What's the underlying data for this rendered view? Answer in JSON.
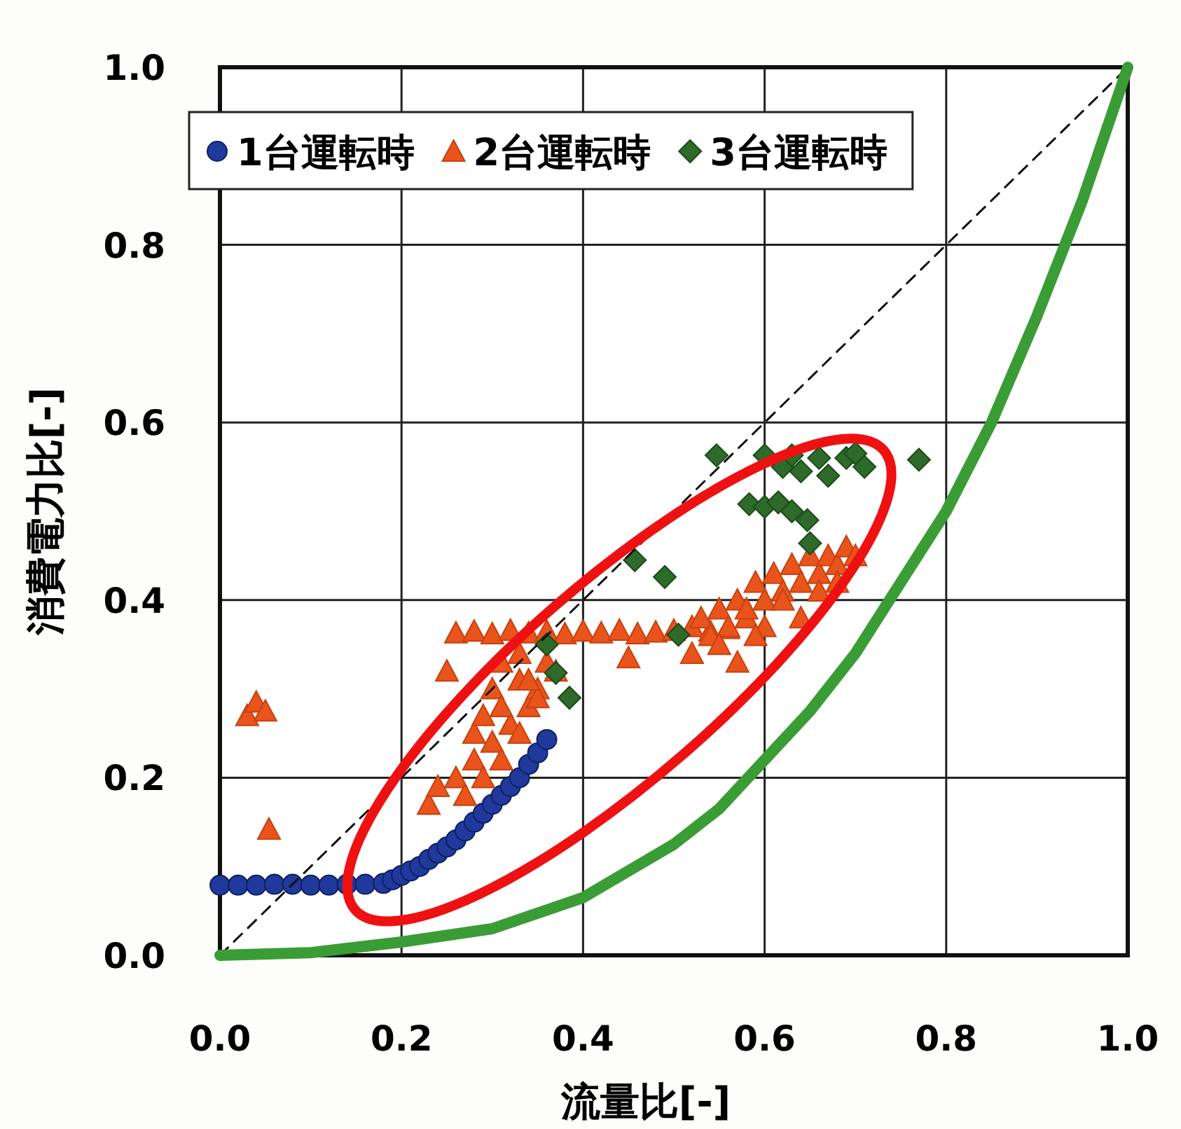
{
  "chart_data": {
    "type": "scatter",
    "xlabel": "流量比[-]",
    "ylabel": "消費電力比[-]",
    "xlim": [
      0,
      1
    ],
    "ylim": [
      0,
      1
    ],
    "xticks": [
      {
        "value": 0,
        "label": "0.0"
      },
      {
        "value": 0.2,
        "label": "0.2"
      },
      {
        "value": 0.4,
        "label": "0.4"
      },
      {
        "value": 0.6,
        "label": "0.6"
      },
      {
        "value": 0.8,
        "label": "0.8"
      },
      {
        "value": 1,
        "label": "1.0"
      }
    ],
    "yticks": [
      {
        "value": 0,
        "label": "0.0"
      },
      {
        "value": 0.2,
        "label": "0.2"
      },
      {
        "value": 0.4,
        "label": "0.4"
      },
      {
        "value": 0.6,
        "label": "0.6"
      },
      {
        "value": 0.8,
        "label": "0.8"
      },
      {
        "value": 1,
        "label": "1.0"
      }
    ],
    "grid": true,
    "legend": "top",
    "series": [
      {
        "name": "1台運転時",
        "marker": "circle",
        "color": "#1f3a9a",
        "x": [
          0.0,
          0.02,
          0.04,
          0.06,
          0.08,
          0.1,
          0.12,
          0.14,
          0.16,
          0.18,
          0.19,
          0.2,
          0.21,
          0.22,
          0.23,
          0.24,
          0.25,
          0.26,
          0.27,
          0.28,
          0.29,
          0.3,
          0.31,
          0.32,
          0.33,
          0.34,
          0.35,
          0.36
        ],
        "values": [
          0.079,
          0.079,
          0.079,
          0.08,
          0.08,
          0.079,
          0.079,
          0.08,
          0.08,
          0.081,
          0.085,
          0.09,
          0.095,
          0.1,
          0.108,
          0.115,
          0.122,
          0.13,
          0.14,
          0.15,
          0.16,
          0.17,
          0.18,
          0.19,
          0.2,
          0.215,
          0.228,
          0.243
        ]
      },
      {
        "name": "2台運転時",
        "marker": "triangle",
        "color": "#e8541c",
        "x": [
          0.03,
          0.04,
          0.05,
          0.054,
          0.25,
          0.23,
          0.24,
          0.26,
          0.27,
          0.28,
          0.29,
          0.3,
          0.31,
          0.32,
          0.33,
          0.34,
          0.35,
          0.36,
          0.26,
          0.28,
          0.3,
          0.32,
          0.34,
          0.36,
          0.38,
          0.4,
          0.42,
          0.44,
          0.46,
          0.48,
          0.5,
          0.52,
          0.54,
          0.56,
          0.3,
          0.31,
          0.33,
          0.35,
          0.37,
          0.28,
          0.29,
          0.31,
          0.33,
          0.34,
          0.45,
          0.52,
          0.53,
          0.54,
          0.55,
          0.56,
          0.57,
          0.58,
          0.59,
          0.6,
          0.61,
          0.62,
          0.63,
          0.64,
          0.65,
          0.66,
          0.67,
          0.68,
          0.69,
          0.7,
          0.58,
          0.6,
          0.62,
          0.64,
          0.66,
          0.68,
          0.55,
          0.57,
          0.59
        ],
        "values": [
          0.27,
          0.285,
          0.275,
          0.142,
          0.32,
          0.17,
          0.19,
          0.2,
          0.18,
          0.22,
          0.2,
          0.24,
          0.22,
          0.26,
          0.25,
          0.28,
          0.3,
          0.33,
          0.363,
          0.365,
          0.362,
          0.366,
          0.363,
          0.365,
          0.362,
          0.365,
          0.363,
          0.366,
          0.362,
          0.364,
          0.366,
          0.37,
          0.365,
          0.368,
          0.3,
          0.28,
          0.31,
          0.29,
          0.32,
          0.25,
          0.27,
          0.33,
          0.34,
          0.31,
          0.335,
          0.34,
          0.38,
          0.36,
          0.39,
          0.37,
          0.4,
          0.38,
          0.42,
          0.4,
          0.43,
          0.41,
          0.44,
          0.42,
          0.45,
          0.43,
          0.45,
          0.44,
          0.46,
          0.45,
          0.39,
          0.37,
          0.4,
          0.38,
          0.41,
          0.42,
          0.35,
          0.33,
          0.36
        ]
      },
      {
        "name": "3台運転時",
        "marker": "diamond",
        "color": "#2e6b2a",
        "x": [
          0.36,
          0.37,
          0.385,
          0.457,
          0.49,
          0.505,
          0.547,
          0.6,
          0.62,
          0.63,
          0.64,
          0.66,
          0.67,
          0.69,
          0.7,
          0.71,
          0.77,
          0.583,
          0.6,
          0.615,
          0.63,
          0.647,
          0.65
        ],
        "values": [
          0.35,
          0.318,
          0.29,
          0.445,
          0.426,
          0.361,
          0.563,
          0.563,
          0.55,
          0.563,
          0.545,
          0.56,
          0.54,
          0.56,
          0.565,
          0.55,
          0.558,
          0.508,
          0.505,
          0.51,
          0.5,
          0.49,
          0.464
        ]
      },
      {
        "type": "line",
        "line_style": "dashed",
        "color": "#111111",
        "x": [
          0,
          1
        ],
        "values": [
          0,
          1
        ]
      },
      {
        "type": "line",
        "line_style": "solid",
        "color": "#3a9c35",
        "x": [
          0,
          0.1,
          0.2,
          0.3,
          0.4,
          0.5,
          0.55,
          0.6,
          0.65,
          0.7,
          0.75,
          0.8,
          0.85,
          0.9,
          0.95,
          1.0
        ],
        "values": [
          0,
          0.003,
          0.015,
          0.03,
          0.065,
          0.125,
          0.165,
          0.22,
          0.275,
          0.34,
          0.42,
          0.5,
          0.6,
          0.72,
          0.85,
          1.0
        ]
      }
    ]
  }
}
